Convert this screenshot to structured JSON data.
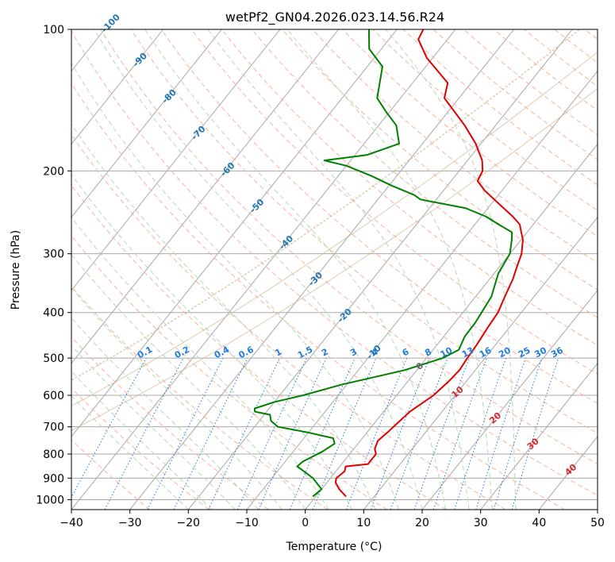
{
  "chart_data": {
    "type": "line",
    "title": "wetPf2_GN04.2026.023.14.56.R24",
    "xlabel": "Temperature (°C)",
    "ylabel": "Pressure (hPa)",
    "xlim": [
      -40,
      50
    ],
    "ylim": [
      1050,
      100
    ],
    "y_scale": "log",
    "skew": "skew-T log-p",
    "grid": true,
    "x_ticks": [
      "−40",
      "−30",
      "−20",
      "−10",
      "0",
      "10",
      "20",
      "30",
      "40",
      "50"
    ],
    "y_ticks": [
      "100",
      "200",
      "300",
      "400",
      "500",
      "600",
      "700",
      "800",
      "900",
      "1000"
    ],
    "series": [
      {
        "color": "#e00000",
        "p": [
          985,
          950,
          920,
          900,
          870,
          850,
          840,
          800,
          780,
          750,
          720,
          690,
          650,
          600,
          560,
          530,
          500,
          470,
          430,
          400,
          370,
          340,
          320,
          300,
          280,
          270,
          260,
          250,
          240,
          220,
          210,
          200,
          190,
          175,
          160,
          140,
          130,
          115,
          105,
          100
        ],
        "t": [
          5.2,
          3.0,
          1.5,
          1.0,
          1.5,
          1.0,
          4.5,
          4.5,
          3.6,
          3.0,
          3.5,
          3.9,
          4.5,
          6.3,
          7.0,
          7.3,
          7.0,
          6.8,
          6.3,
          6.0,
          5.0,
          4.0,
          3.0,
          2.0,
          0.3,
          -1.0,
          -2.3,
          -4.6,
          -7.3,
          -13.0,
          -15.5,
          -16.0,
          -17.5,
          -20.9,
          -25.3,
          -32.5,
          -34.0,
          -41.0,
          -45.0,
          -45.5
        ]
      },
      {
        "color": "#008000",
        "p": [
          985,
          950,
          900,
          870,
          850,
          830,
          820,
          790,
          760,
          740,
          720,
          700,
          680,
          660,
          650,
          640,
          620,
          600,
          570,
          530,
          500,
          480,
          450,
          420,
          400,
          370,
          330,
          300,
          280,
          270,
          260,
          250,
          240,
          230,
          225,
          215,
          205,
          195,
          190,
          185,
          175,
          160,
          150,
          140,
          120,
          110,
          100
        ],
        "t": [
          -0.5,
          0.0,
          -3.0,
          -5.5,
          -7.3,
          -7.0,
          -6.5,
          -5.0,
          -4.0,
          -5.0,
          -10.0,
          -16.0,
          -18.0,
          -19.0,
          -22.0,
          -22.5,
          -20.0,
          -16.0,
          -11.0,
          -2.0,
          2.8,
          4.4,
          3.6,
          3.5,
          3.2,
          2.7,
          0.7,
          0.0,
          -1.6,
          -2.6,
          -5.9,
          -9.2,
          -13.8,
          -22.7,
          -24.4,
          -29.5,
          -34.3,
          -40.0,
          -44.5,
          -38.0,
          -34.0,
          -37.0,
          -40.5,
          -44.0,
          -47.4,
          -52.1,
          -54.8
        ]
      }
    ],
    "dry_adiabat_labels": [
      "0",
      "10",
      "20",
      "30",
      "40"
    ],
    "moist_adiabat_labels": [
      "-100",
      "-90",
      "-80",
      "-70",
      "-60",
      "-50",
      "-40",
      "-30",
      "-20",
      "-10"
    ],
    "mixing_ratio_labels": [
      "0.1",
      "0.2",
      "0.4",
      "0.6",
      "1",
      "1.5",
      "2",
      "3",
      "4",
      "6",
      "8",
      "10",
      "13",
      "16",
      "20",
      "25",
      "30",
      "36"
    ]
  },
  "colors": {
    "isotherm": "#a8a8a8",
    "dry_adiabat": "#f7b29a",
    "moist_adiabat": "#b5d8b5",
    "mixing_ratio": "#1e7be0",
    "moist_label": "#1f77b4",
    "dry_label": "#d62728",
    "ref_curve": "#d2b48c"
  }
}
